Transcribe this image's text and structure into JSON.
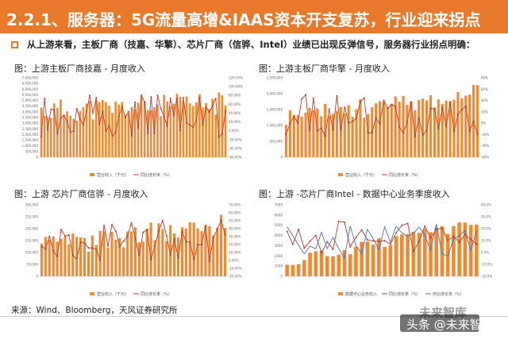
{
  "header": {
    "title": "2.2.1、服务器：5G流量高增&IAAS资本开支复苏，行业迎来拐点"
  },
  "summary": {
    "text": "从上游来看，主板厂商（技嘉、华擎）、芯片厂商（信骅、Intel）业绩已出现反弹信号，服务器行业拐点明确："
  },
  "colors": {
    "accent": "#e8782a",
    "bar": "#f0892f",
    "line": "#c0392b",
    "line2": "#4a6fb5"
  },
  "panels": [
    {
      "title": "图：上游主板厂商技嘉 - 月度收入",
      "legend": [
        "营业收入（千元）",
        "同比增长率（%）"
      ],
      "y_left_ticks": [
        "7,000,000",
        "6,500,000",
        "6,000,000",
        "5,500,000",
        "5,000,000",
        "4,500,000",
        "4,000,000",
        "3,500,000",
        "3,000,000",
        "2,500,000",
        "2,000,000",
        "1,500,000",
        "1,000,000",
        "500,000",
        "0"
      ],
      "y_right_ticks": [
        "120.00%",
        "100.00%",
        "80.00%",
        "60.00%",
        "40.00%",
        "20.00%",
        "0.00%",
        "-20.00%",
        "-40.00%",
        "-60.00%"
      ]
    },
    {
      "title": "图：上游主板厂商华擎 - 月度收入",
      "legend": [
        "营业收入（千元）",
        "同比增长率（%）"
      ],
      "y_left_ticks": [
        "2,500,000",
        "2,000,000",
        "1,500,000",
        "1,000,000",
        "500,000",
        "0"
      ],
      "y_right_ticks": [
        "80%",
        "60%",
        "40%",
        "20%",
        "0%",
        "-20%",
        "-40%",
        "-60%"
      ]
    },
    {
      "title": "图：上游  芯片厂商信骅 - 月度收入",
      "legend": [
        "营业收入（千元）",
        "同比增长率（%）"
      ],
      "y_left_ticks": [
        "300,000",
        "250,000",
        "200,000",
        "150,000",
        "100,000",
        "50,000",
        "0"
      ],
      "y_right_ticks": [
        "70.00%",
        "60.00%",
        "50.00%",
        "40.00%",
        "30.00%",
        "20.00%",
        "10.00%",
        "0.00%",
        "-10.00%",
        "-20.00%"
      ]
    },
    {
      "title": "图：上游 -芯片厂商Intel - 数据中心业务季度收入",
      "legend": [
        "数据中心业务收入",
        "同比增长率（%）",
        "环比增长率（%）"
      ],
      "y_left_ticks": [
        "7000",
        "6000",
        "5000",
        "4000",
        "3000",
        "2000",
        "1000",
        "0"
      ],
      "y_right_ticks": [
        "40.0%",
        "30.0%",
        "20.0%",
        "10.0%",
        "0.0%",
        "-10.0%",
        "-20.0%"
      ]
    }
  ],
  "source": {
    "text": "来源：Wind、Bloomberg，天风证券研究所"
  },
  "watermark": {
    "top": "未来智库",
    "badge": "头条 @未来智库"
  }
}
